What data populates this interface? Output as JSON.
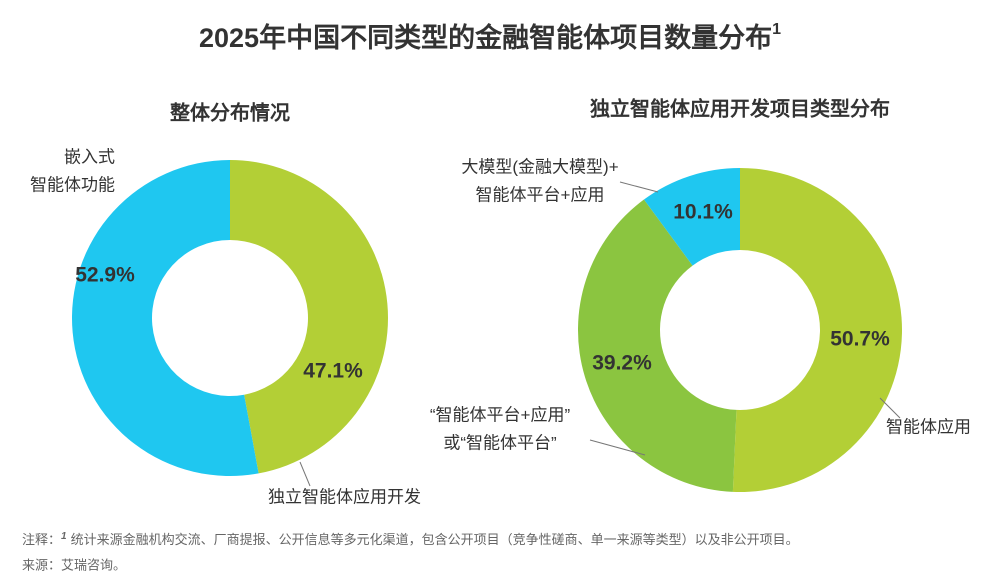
{
  "title": "2025年中国不同类型的金融智能体项目数量分布",
  "title_ref": "1",
  "notes": {
    "label": "注释：",
    "ref": "1",
    "text": "统计来源金融机构交流、厂商提报、公开信息等多元化渠道，包含公开项目（竞争性磋商、单一来源等类型）以及非公开项目。"
  },
  "source": "来源：艾瑞咨询。",
  "chart_data": [
    {
      "type": "pie",
      "title": "整体分布情况",
      "categories": [
        [
          "独立智能体应用开发"
        ],
        [
          "嵌入式",
          "智能体功能"
        ]
      ],
      "values": [
        47.1,
        52.9
      ],
      "value_labels": [
        "47.1%",
        "52.9%"
      ],
      "colors": [
        "#b3cf36",
        "#1fc7f0"
      ],
      "donut": true
    },
    {
      "type": "pie",
      "title": "独立智能体应用开发项目类型分布",
      "categories": [
        [
          "智能体应用"
        ],
        [
          "“智能体平台+应用”",
          "或“智能体平台”"
        ],
        [
          "大模型(金融大模型)+",
          "智能体平台+应用"
        ]
      ],
      "values": [
        50.7,
        39.2,
        10.1
      ],
      "value_labels": [
        "50.7%",
        "39.2%",
        "10.1%"
      ],
      "colors": [
        "#b3cf36",
        "#8bc540",
        "#1fc7f0"
      ],
      "donut": true
    }
  ]
}
